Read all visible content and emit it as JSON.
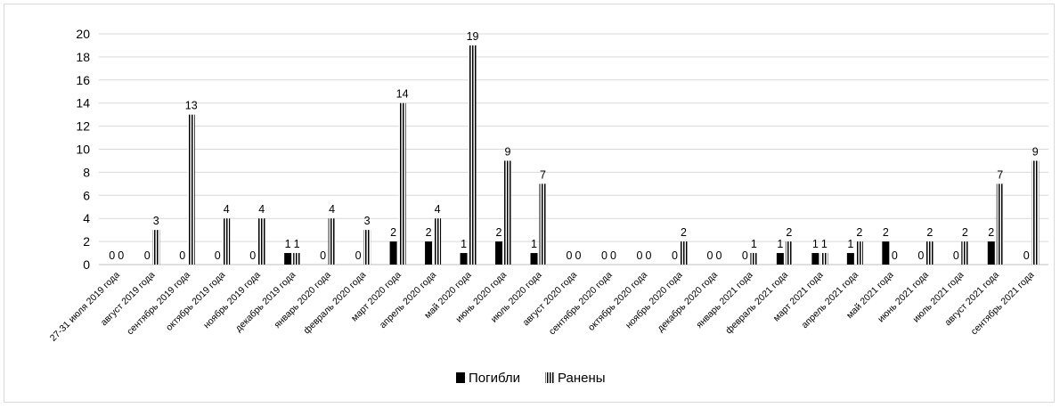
{
  "chart_data": {
    "type": "bar",
    "categories": [
      "27-31 июля 2019 года",
      "август 2019 года",
      "сентябрь 2019 года",
      "октябрь 2019 года",
      "ноябрь 2019 года",
      "декабрь 2019 года",
      "январь 2020 года",
      "февраль 2020 года",
      "март 2020 года",
      "апрель 2020 года",
      "май 2020 года",
      "июнь 2020 года",
      "июль 2020 года",
      "август 2020 года",
      "сентябрь 2020 года",
      "октябрь 2020 года",
      "ноябрь 2020 года",
      "декабрь 2020 года",
      "январь 2021 года",
      "февраль 2021 года",
      "март 2021 года",
      "апрель 2021 года",
      "май 2021 года",
      "июнь 2021 года",
      "июль 2021 года",
      "август 2021 года",
      "сентябрь 2021 года"
    ],
    "series": [
      {
        "name": "Погибли",
        "values": [
          0,
          0,
          0,
          0,
          0,
          1,
          0,
          0,
          2,
          2,
          1,
          2,
          1,
          0,
          0,
          0,
          0,
          0,
          0,
          1,
          1,
          1,
          2,
          0,
          0,
          2,
          0
        ],
        "color": "#000000",
        "pattern": "solid"
      },
      {
        "name": "Ранены",
        "values": [
          0,
          3,
          13,
          4,
          4,
          1,
          4,
          3,
          14,
          4,
          19,
          9,
          7,
          0,
          0,
          0,
          2,
          0,
          1,
          2,
          1,
          2,
          0,
          2,
          2,
          7,
          9
        ],
        "color": "#000000",
        "pattern": "vertical-stripes"
      }
    ],
    "ylim": [
      0,
      20
    ],
    "yticks": [
      0,
      2,
      4,
      6,
      8,
      10,
      12,
      14,
      16,
      18,
      20
    ],
    "grid": true,
    "legend_position": "bottom",
    "data_labels": true
  }
}
